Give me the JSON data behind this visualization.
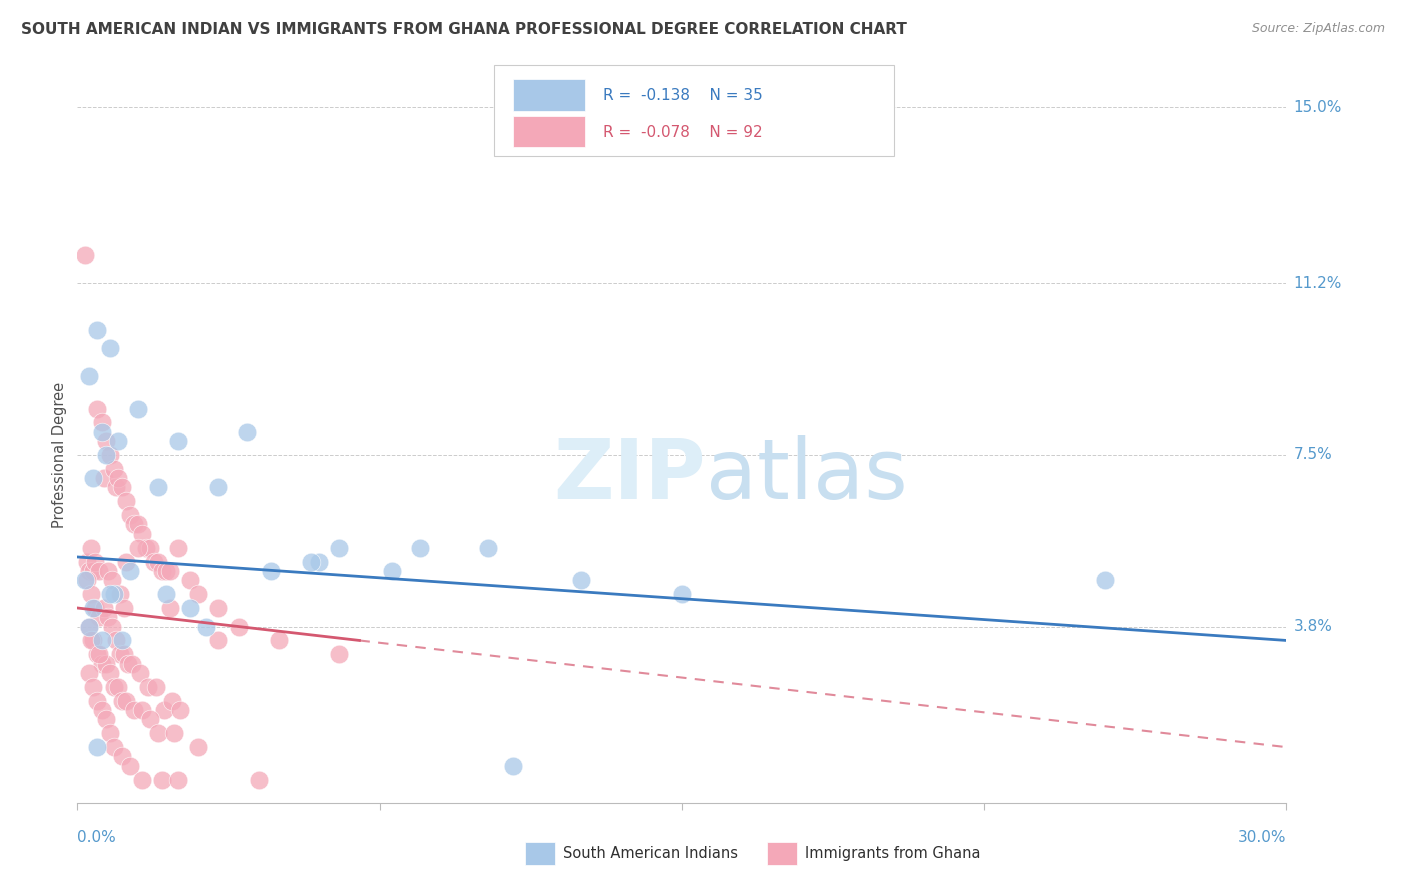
{
  "title": "SOUTH AMERICAN INDIAN VS IMMIGRANTS FROM GHANA PROFESSIONAL DEGREE CORRELATION CHART",
  "source": "Source: ZipAtlas.com",
  "ylabel": "Professional Degree",
  "y_ticks": [
    0.0,
    3.8,
    7.5,
    11.2,
    15.0
  ],
  "x_lim": [
    0.0,
    30.0
  ],
  "y_lim": [
    0.0,
    15.0
  ],
  "blue_R": "-0.138",
  "blue_N": "35",
  "pink_R": "-0.078",
  "pink_N": "92",
  "blue_color": "#a8c8e8",
  "pink_color": "#f4a8b8",
  "blue_line_color": "#3a7abf",
  "pink_line_color": "#d45870",
  "background_color": "#ffffff",
  "grid_color": "#cccccc",
  "title_color": "#404040",
  "source_color": "#909090",
  "axis_label_color": "#5599cc",
  "legend_label_color_blue": "#3a7abf",
  "legend_label_color_pink": "#d45870",
  "blue_scatter_x": [
    0.5,
    0.8,
    1.5,
    0.3,
    0.6,
    1.0,
    2.5,
    0.4,
    0.7,
    2.0,
    3.5,
    4.2,
    6.0,
    8.5,
    10.2,
    12.5,
    15.0,
    25.5,
    0.2,
    0.4,
    0.9,
    1.3,
    2.8,
    0.3,
    0.6,
    1.1,
    3.2,
    7.8,
    0.5,
    10.8,
    5.8,
    6.5,
    4.8,
    0.8,
    2.2
  ],
  "blue_scatter_y": [
    10.2,
    9.8,
    8.5,
    9.2,
    8.0,
    7.8,
    7.8,
    7.0,
    7.5,
    6.8,
    6.8,
    8.0,
    5.2,
    5.5,
    5.5,
    4.8,
    4.5,
    4.8,
    4.8,
    4.2,
    4.5,
    5.0,
    4.2,
    3.8,
    3.5,
    3.5,
    3.8,
    5.0,
    1.2,
    0.8,
    5.2,
    5.5,
    5.0,
    4.5,
    4.5
  ],
  "pink_scatter_x": [
    0.2,
    0.25,
    0.3,
    0.35,
    0.4,
    0.45,
    0.5,
    0.55,
    0.6,
    0.65,
    0.7,
    0.75,
    0.8,
    0.85,
    0.9,
    0.95,
    1.0,
    1.05,
    1.1,
    1.15,
    1.2,
    1.3,
    1.4,
    1.5,
    1.6,
    1.7,
    1.8,
    1.9,
    2.0,
    2.1,
    2.2,
    2.3,
    2.5,
    2.8,
    3.0,
    3.5,
    4.0,
    5.0,
    6.5,
    0.25,
    0.35,
    0.45,
    0.55,
    0.65,
    0.75,
    0.85,
    0.95,
    1.05,
    1.15,
    1.25,
    1.35,
    1.55,
    1.75,
    1.95,
    2.15,
    2.35,
    2.55,
    0.3,
    0.4,
    0.5,
    0.6,
    0.7,
    0.8,
    0.9,
    1.0,
    1.1,
    1.2,
    1.4,
    1.6,
    1.8,
    2.0,
    2.4,
    3.0,
    1.2,
    1.5,
    3.5,
    0.3,
    0.4,
    0.5,
    0.6,
    0.7,
    0.8,
    0.9,
    1.1,
    1.3,
    1.6,
    2.1,
    2.5,
    4.5,
    0.35,
    0.55,
    2.3
  ],
  "pink_scatter_y": [
    11.8,
    5.2,
    5.0,
    5.5,
    5.0,
    5.2,
    8.5,
    5.0,
    8.2,
    7.0,
    7.8,
    5.0,
    7.5,
    4.8,
    7.2,
    6.8,
    7.0,
    4.5,
    6.8,
    4.2,
    6.5,
    6.2,
    6.0,
    6.0,
    5.8,
    5.5,
    5.5,
    5.2,
    5.2,
    5.0,
    5.0,
    5.0,
    5.5,
    4.8,
    4.5,
    4.2,
    3.8,
    3.5,
    3.2,
    4.8,
    4.5,
    4.2,
    4.0,
    4.2,
    4.0,
    3.8,
    3.5,
    3.2,
    3.2,
    3.0,
    3.0,
    2.8,
    2.5,
    2.5,
    2.0,
    2.2,
    2.0,
    3.8,
    3.5,
    3.2,
    3.0,
    3.0,
    2.8,
    2.5,
    2.5,
    2.2,
    2.2,
    2.0,
    2.0,
    1.8,
    1.5,
    1.5,
    1.2,
    5.2,
    5.5,
    3.5,
    2.8,
    2.5,
    2.2,
    2.0,
    1.8,
    1.5,
    1.2,
    1.0,
    0.8,
    0.5,
    0.5,
    0.5,
    0.5,
    3.5,
    3.2,
    4.2
  ],
  "blue_line_x0": 0.0,
  "blue_line_y0": 5.3,
  "blue_line_x1": 30.0,
  "blue_line_y1": 3.5,
  "pink_line_x0": 0.0,
  "pink_line_y0": 4.2,
  "pink_line_x1": 30.0,
  "pink_line_y1": 1.2,
  "pink_solid_end": 7.0
}
